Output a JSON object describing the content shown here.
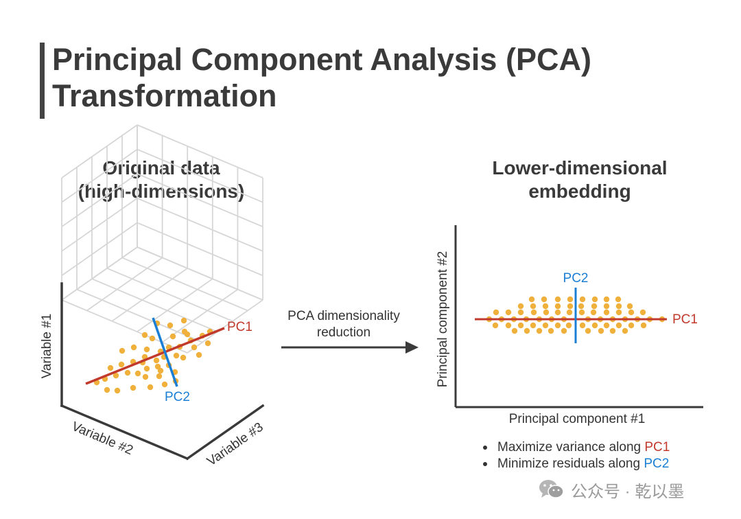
{
  "title": {
    "line1": "Principal Component Analysis (PCA)",
    "line2": "Transformation"
  },
  "left_panel": {
    "heading_line1": "Original data",
    "heading_line2": "(high-dimensions)",
    "axis_variable1": "Variable #1",
    "axis_variable2": "Variable #2",
    "axis_variable3": "Variable #3",
    "pc1_label": "PC1",
    "pc2_label": "PC2"
  },
  "arrow": {
    "label_line1": "PCA dimensionality",
    "label_line2": "reduction"
  },
  "right_panel": {
    "heading_line1": "Lower-dimensional",
    "heading_line2": "embedding",
    "x_axis_label": "Principal component #1",
    "y_axis_label": "Principal component #2",
    "pc1_label": "PC1",
    "pc2_label": "PC2"
  },
  "bullets": [
    {
      "text": "Maximize variance along ",
      "highlight": "PC1"
    },
    {
      "text": "Minimize residuals along ",
      "highlight": "PC2"
    }
  ],
  "watermark": {
    "text": "公众号 · 乾以墨",
    "icon": "wechat-icon"
  },
  "colors": {
    "points": "#f0b03c",
    "pc1_line": "#c0392b",
    "pc2_line": "#1a7fd4",
    "grid": "#d6d6d6",
    "axis": "#3a3a3a",
    "title_bar": "#444444"
  }
}
